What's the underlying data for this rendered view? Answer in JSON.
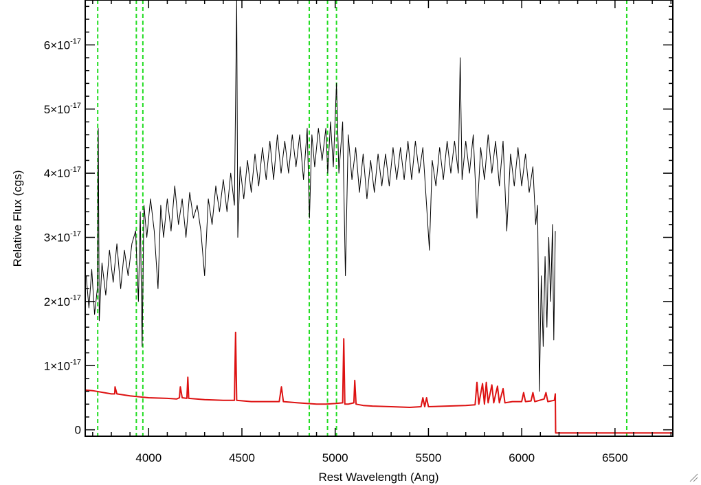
{
  "chart_data": {
    "type": "line",
    "xlabel": "Rest Wavelength (Ang)",
    "ylabel": "Relative Flux (cgs)",
    "xlim": [
      3660,
      6810
    ],
    "ylim": [
      -1e-18,
      6.7e-17
    ],
    "x_ticks": [
      {
        "value": 4000,
        "label": "4000"
      },
      {
        "value": 4500,
        "label": "4500"
      },
      {
        "value": 5000,
        "label": "5000"
      },
      {
        "value": 5500,
        "label": "5500"
      },
      {
        "value": 6000,
        "label": "6000"
      },
      {
        "value": 6500,
        "label": "6500"
      }
    ],
    "y_ticks": [
      {
        "value": 0,
        "mantissa": "0",
        "exponent": ""
      },
      {
        "value": 1e-17,
        "mantissa": "1×10",
        "exponent": "-17"
      },
      {
        "value": 2e-17,
        "mantissa": "2×10",
        "exponent": "-17"
      },
      {
        "value": 3e-17,
        "mantissa": "3×10",
        "exponent": "-17"
      },
      {
        "value": 4e-17,
        "mantissa": "4×10",
        "exponent": "-17"
      },
      {
        "value": 5e-17,
        "mantissa": "5×10",
        "exponent": "-17"
      },
      {
        "value": 6e-17,
        "mantissa": "6×10",
        "exponent": "-17"
      }
    ],
    "reference_lines_x": [
      3727,
      3934,
      3969,
      4861,
      4959,
      5007,
      6563
    ],
    "reference_line_color": "#22dd22",
    "series": [
      {
        "color": "#000000",
        "points": [
          [
            3665,
            2.4e-17
          ],
          [
            3680,
            1.9e-17
          ],
          [
            3695,
            2.5e-17
          ],
          [
            3710,
            1.8e-17
          ],
          [
            3725,
            2.2e-17
          ],
          [
            3730,
            4.7e-17
          ],
          [
            3735,
            1.7e-17
          ],
          [
            3750,
            2.6e-17
          ],
          [
            3770,
            2.1e-17
          ],
          [
            3790,
            2.8e-17
          ],
          [
            3810,
            2.3e-17
          ],
          [
            3830,
            2.9e-17
          ],
          [
            3850,
            2.2e-17
          ],
          [
            3870,
            2.8e-17
          ],
          [
            3890,
            2.4e-17
          ],
          [
            3910,
            2.9e-17
          ],
          [
            3930,
            3.1e-17
          ],
          [
            3945,
            2e-17
          ],
          [
            3955,
            3.4e-17
          ],
          [
            3965,
            1.3e-17
          ],
          [
            3975,
            3.5e-17
          ],
          [
            3990,
            3e-17
          ],
          [
            4010,
            3.6e-17
          ],
          [
            4030,
            3.1e-17
          ],
          [
            4050,
            2.2e-17
          ],
          [
            4065,
            3.5e-17
          ],
          [
            4080,
            3e-17
          ],
          [
            4100,
            3.6e-17
          ],
          [
            4120,
            3.1e-17
          ],
          [
            4140,
            3.8e-17
          ],
          [
            4160,
            3.2e-17
          ],
          [
            4180,
            3.6e-17
          ],
          [
            4200,
            3e-17
          ],
          [
            4220,
            3.7e-17
          ],
          [
            4240,
            3.3e-17
          ],
          [
            4260,
            3.5e-17
          ],
          [
            4280,
            3.1e-17
          ],
          [
            4300,
            2.4e-17
          ],
          [
            4320,
            3.6e-17
          ],
          [
            4340,
            3.2e-17
          ],
          [
            4360,
            3.8e-17
          ],
          [
            4380,
            3.4e-17
          ],
          [
            4400,
            3.9e-17
          ],
          [
            4420,
            3.4e-17
          ],
          [
            4440,
            4e-17
          ],
          [
            4460,
            3.5e-17
          ],
          [
            4472,
            6.7e-17
          ],
          [
            4478,
            3e-17
          ],
          [
            4490,
            4.1e-17
          ],
          [
            4510,
            3.6e-17
          ],
          [
            4530,
            4.2e-17
          ],
          [
            4550,
            3.7e-17
          ],
          [
            4570,
            4.3e-17
          ],
          [
            4590,
            3.8e-17
          ],
          [
            4610,
            4.4e-17
          ],
          [
            4630,
            3.9e-17
          ],
          [
            4650,
            4.5e-17
          ],
          [
            4670,
            3.9e-17
          ],
          [
            4690,
            4.6e-17
          ],
          [
            4710,
            4e-17
          ],
          [
            4730,
            4.5e-17
          ],
          [
            4750,
            4e-17
          ],
          [
            4770,
            4.6e-17
          ],
          [
            4790,
            4.1e-17
          ],
          [
            4810,
            4.6e-17
          ],
          [
            4830,
            3.9e-17
          ],
          [
            4850,
            4.7e-17
          ],
          [
            4862,
            3.3e-17
          ],
          [
            4875,
            4.6e-17
          ],
          [
            4890,
            4.1e-17
          ],
          [
            4910,
            4.7e-17
          ],
          [
            4930,
            4.2e-17
          ],
          [
            4950,
            4.7e-17
          ],
          [
            4960,
            4e-17
          ],
          [
            4975,
            4.8e-17
          ],
          [
            4990,
            4.1e-17
          ],
          [
            5007,
            5.4e-17
          ],
          [
            5020,
            4e-17
          ],
          [
            5040,
            4.8e-17
          ],
          [
            5055,
            2.4e-17
          ],
          [
            5070,
            4.6e-17
          ],
          [
            5090,
            3.9e-17
          ],
          [
            5110,
            4.4e-17
          ],
          [
            5130,
            3.7e-17
          ],
          [
            5150,
            4.3e-17
          ],
          [
            5170,
            3.6e-17
          ],
          [
            5190,
            4.2e-17
          ],
          [
            5210,
            3.7e-17
          ],
          [
            5230,
            4.3e-17
          ],
          [
            5250,
            3.8e-17
          ],
          [
            5270,
            4.3e-17
          ],
          [
            5290,
            3.8e-17
          ],
          [
            5310,
            4.4e-17
          ],
          [
            5330,
            3.9e-17
          ],
          [
            5350,
            4.4e-17
          ],
          [
            5370,
            3.9e-17
          ],
          [
            5390,
            4.5e-17
          ],
          [
            5410,
            3.9e-17
          ],
          [
            5430,
            4.5e-17
          ],
          [
            5450,
            4e-17
          ],
          [
            5470,
            4.4e-17
          ],
          [
            5490,
            3.5e-17
          ],
          [
            5505,
            2.8e-17
          ],
          [
            5520,
            4.2e-17
          ],
          [
            5540,
            3.8e-17
          ],
          [
            5560,
            4.4e-17
          ],
          [
            5580,
            3.9e-17
          ],
          [
            5600,
            4.5e-17
          ],
          [
            5620,
            4e-17
          ],
          [
            5640,
            4.5e-17
          ],
          [
            5660,
            4e-17
          ],
          [
            5670,
            5.8e-17
          ],
          [
            5680,
            3.9e-17
          ],
          [
            5700,
            4.5e-17
          ],
          [
            5720,
            4e-17
          ],
          [
            5740,
            4.6e-17
          ],
          [
            5760,
            3.3e-17
          ],
          [
            5780,
            4.4e-17
          ],
          [
            5800,
            3.9e-17
          ],
          [
            5820,
            4.6e-17
          ],
          [
            5840,
            4e-17
          ],
          [
            5860,
            4.5e-17
          ],
          [
            5880,
            3.8e-17
          ],
          [
            5900,
            4.5e-17
          ],
          [
            5920,
            3.1e-17
          ],
          [
            5940,
            4.3e-17
          ],
          [
            5960,
            3.8e-17
          ],
          [
            5980,
            4.4e-17
          ],
          [
            6000,
            3.8e-17
          ],
          [
            6020,
            4.3e-17
          ],
          [
            6040,
            3.7e-17
          ],
          [
            6060,
            4.1e-17
          ],
          [
            6075,
            3.2e-17
          ],
          [
            6085,
            3.5e-17
          ],
          [
            6095,
            6e-18
          ],
          [
            6105,
            2.4e-17
          ],
          [
            6115,
            1.3e-17
          ],
          [
            6125,
            2.7e-17
          ],
          [
            6135,
            1.6e-17
          ],
          [
            6145,
            3e-17
          ],
          [
            6155,
            2e-17
          ],
          [
            6165,
            3.2e-17
          ],
          [
            6172,
            1.4e-17
          ],
          [
            6180,
            3.1e-17
          ]
        ]
      },
      {
        "color": "#dd1111",
        "points": [
          [
            3660,
            6.2e-18
          ],
          [
            3700,
            6.1e-18
          ],
          [
            3760,
            5.8e-18
          ],
          [
            3800,
            5.6e-18
          ],
          [
            3818,
            5.6e-18
          ],
          [
            3820,
            6.7e-18
          ],
          [
            3830,
            5.6e-18
          ],
          [
            3900,
            5.3e-18
          ],
          [
            4000,
            5e-18
          ],
          [
            4100,
            4.9e-18
          ],
          [
            4150,
            4.8e-18
          ],
          [
            4165,
            5e-18
          ],
          [
            4170,
            6.7e-18
          ],
          [
            4180,
            5e-18
          ],
          [
            4205,
            4.9e-18
          ],
          [
            4210,
            8.2e-18
          ],
          [
            4215,
            4.9e-18
          ],
          [
            4300,
            4.7e-18
          ],
          [
            4400,
            4.6e-18
          ],
          [
            4460,
            4.6e-18
          ],
          [
            4466,
            1.52e-17
          ],
          [
            4472,
            4.6e-18
          ],
          [
            4550,
            4.4e-18
          ],
          [
            4600,
            4.4e-18
          ],
          [
            4700,
            4.4e-18
          ],
          [
            4712,
            6.7e-18
          ],
          [
            4722,
            4.4e-18
          ],
          [
            4800,
            4.2e-18
          ],
          [
            4900,
            4e-18
          ],
          [
            4950,
            4e-18
          ],
          [
            5000,
            4.1e-18
          ],
          [
            5040,
            4.2e-18
          ],
          [
            5046,
            1.42e-17
          ],
          [
            5052,
            4e-18
          ],
          [
            5070,
            4e-18
          ],
          [
            5100,
            4.2e-18
          ],
          [
            5105,
            7.7e-18
          ],
          [
            5112,
            4e-18
          ],
          [
            5150,
            3.8e-18
          ],
          [
            5200,
            3.7e-18
          ],
          [
            5300,
            3.6e-18
          ],
          [
            5400,
            3.5e-18
          ],
          [
            5460,
            3.6e-18
          ],
          [
            5470,
            5e-18
          ],
          [
            5480,
            3.6e-18
          ],
          [
            5490,
            5e-18
          ],
          [
            5500,
            3.6e-18
          ],
          [
            5600,
            3.7e-18
          ],
          [
            5700,
            3.8e-18
          ],
          [
            5750,
            3.9e-18
          ],
          [
            5760,
            7.4e-18
          ],
          [
            5770,
            4e-18
          ],
          [
            5790,
            7.2e-18
          ],
          [
            5800,
            4e-18
          ],
          [
            5810,
            7.4e-18
          ],
          [
            5820,
            4.2e-18
          ],
          [
            5840,
            7e-18
          ],
          [
            5850,
            4.2e-18
          ],
          [
            5870,
            6.8e-18
          ],
          [
            5880,
            4.2e-18
          ],
          [
            5900,
            6.4e-18
          ],
          [
            5910,
            4.2e-18
          ],
          [
            5950,
            4.4e-18
          ],
          [
            6000,
            4.4e-18
          ],
          [
            6010,
            5.8e-18
          ],
          [
            6020,
            4.4e-18
          ],
          [
            6050,
            4.5e-18
          ],
          [
            6060,
            5.8e-18
          ],
          [
            6070,
            4.4e-18
          ],
          [
            6120,
            4.8e-18
          ],
          [
            6130,
            5.8e-18
          ],
          [
            6140,
            4.4e-18
          ],
          [
            6175,
            4.6e-18
          ],
          [
            6180,
            5.6e-18
          ],
          [
            6182,
            -5e-19
          ],
          [
            6810,
            -5e-19
          ]
        ]
      }
    ]
  }
}
